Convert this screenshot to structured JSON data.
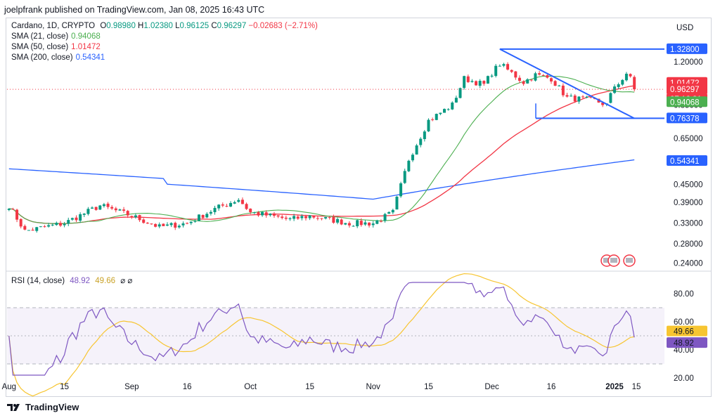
{
  "header": {
    "published_text": "joelpfrank published on TradingView.com, Jan 08, 2025 16:43 UTC"
  },
  "legend": {
    "symbol_line": "Cardano, 1D, CRYPTO",
    "ohlc": {
      "o_label": "O",
      "o": "0.98980",
      "h_label": "H",
      "h": "1.02380",
      "l_label": "L",
      "l": "0.96125",
      "c_label": "C",
      "c": "0.96297",
      "change": "−0.02683 (−2.71%)"
    },
    "sma21": {
      "label": "SMA (21, close)",
      "value": "0.94068"
    },
    "sma50": {
      "label": "SMA (50, close)",
      "value": "1.01472"
    },
    "sma200": {
      "label": "SMA (200, close)",
      "value": "0.54341"
    },
    "rsi": {
      "label": "RSI (14, close)",
      "value1": "48.92",
      "value2": "49.66",
      "extra": "⌀ ⌀"
    }
  },
  "colors": {
    "up": "#089981",
    "down": "#f23645",
    "sma21": "#4caf50",
    "sma50": "#f23645",
    "sma200": "#2962ff",
    "rsi": "#7e57c2",
    "rsi_ma": "#f7c531",
    "trendline": "#2962ff",
    "price_line": "#f23645"
  },
  "price_axis": {
    "currency": "USD",
    "ticks": [
      "1.20000",
      "0.85000",
      "0.65000",
      "0.45000",
      "0.39000",
      "0.33000",
      "0.28000",
      "0.24000"
    ],
    "tags": [
      {
        "text": "1.32800",
        "color": "#2962ff"
      },
      {
        "text": "1.01472",
        "color": "#f23645"
      },
      {
        "text": "0.96297",
        "color": "#f23645"
      },
      {
        "text": "07:16:31",
        "color": "#f23645"
      },
      {
        "text": "0.94068",
        "color": "#4caf50"
      },
      {
        "text": "0.76378",
        "color": "#2962ff"
      },
      {
        "text": "0.54341",
        "color": "#2962ff"
      }
    ]
  },
  "rsi_axis": {
    "ticks": [
      "80.00",
      "60.00",
      "40.00",
      "20.00"
    ],
    "tags": [
      {
        "text": "49.66",
        "color": "#f7c531",
        "dark": true
      },
      {
        "text": "48.92",
        "color": "#7e57c2",
        "dark": false
      }
    ]
  },
  "time_axis": {
    "labels": [
      "Aug",
      "15",
      "Sep",
      "16",
      "Oct",
      "15",
      "Nov",
      "15",
      "Dec",
      "16",
      "2025",
      "15"
    ]
  },
  "footer": {
    "brand": "TradingView"
  },
  "chart_data": {
    "type": "candlestick",
    "title": "Cardano, 1D, CRYPTO",
    "ylabel": "USD",
    "price_range": [
      0.23,
      1.42
    ],
    "scale": "log",
    "anchors": [
      {
        "x": "Aug",
        "y": 0.38
      },
      {
        "x": "Aug 5",
        "y": 0.31
      },
      {
        "x": "15",
        "y": 0.33
      },
      {
        "x": "Aug 24",
        "y": 0.38
      },
      {
        "x": "Sep",
        "y": 0.35
      },
      {
        "x": "Sep 8",
        "y": 0.32
      },
      {
        "x": "16",
        "y": 0.33
      },
      {
        "x": "Sep 22",
        "y": 0.37
      },
      {
        "x": "Sep 28",
        "y": 0.4
      },
      {
        "x": "Oct",
        "y": 0.36
      },
      {
        "x": "Oct 10",
        "y": 0.34
      },
      {
        "x": "15",
        "y": 0.35
      },
      {
        "x": "Oct 25",
        "y": 0.33
      },
      {
        "x": "Nov",
        "y": 0.33
      },
      {
        "x": "Nov 6",
        "y": 0.36
      },
      {
        "x": "Nov 10",
        "y": 0.55
      },
      {
        "x": "15",
        "y": 0.75
      },
      {
        "x": "Nov 21",
        "y": 0.85
      },
      {
        "x": "Nov 24",
        "y": 1.05
      },
      {
        "x": "Nov 29",
        "y": 1.0
      },
      {
        "x": "Dec",
        "y": 1.1
      },
      {
        "x": "Dec 3",
        "y": 1.18
      },
      {
        "x": "Dec 9",
        "y": 1.02
      },
      {
        "x": "Dec 12",
        "y": 1.08
      },
      {
        "x": "16",
        "y": 1.05
      },
      {
        "x": "Dec 20",
        "y": 0.9
      },
      {
        "x": "Dec 27",
        "y": 0.88
      },
      {
        "x": "Dec 30",
        "y": 0.85
      },
      {
        "x": "2025",
        "y": 0.99
      },
      {
        "x": "Jan 4",
        "y": 1.07
      },
      {
        "x": "Jan 6",
        "y": 1.06
      },
      {
        "x": "Jan 8",
        "y": 0.96
      }
    ],
    "series": [
      {
        "name": "SMA (21, close)",
        "last": 0.94068
      },
      {
        "name": "SMA (50, close)",
        "last": 1.01472
      },
      {
        "name": "SMA (200, close)",
        "last": 0.54341
      }
    ],
    "ohlc_last": {
      "open": 0.9898,
      "high": 1.0238,
      "low": 0.96125,
      "close": 0.96297
    },
    "levels": [
      1.328,
      0.76378
    ],
    "rsi": {
      "name": "RSI (14, close)",
      "last": 48.92,
      "ma_last": 49.66,
      "range": [
        20,
        85
      ],
      "bands": [
        70,
        30
      ],
      "midline": 50
    }
  }
}
